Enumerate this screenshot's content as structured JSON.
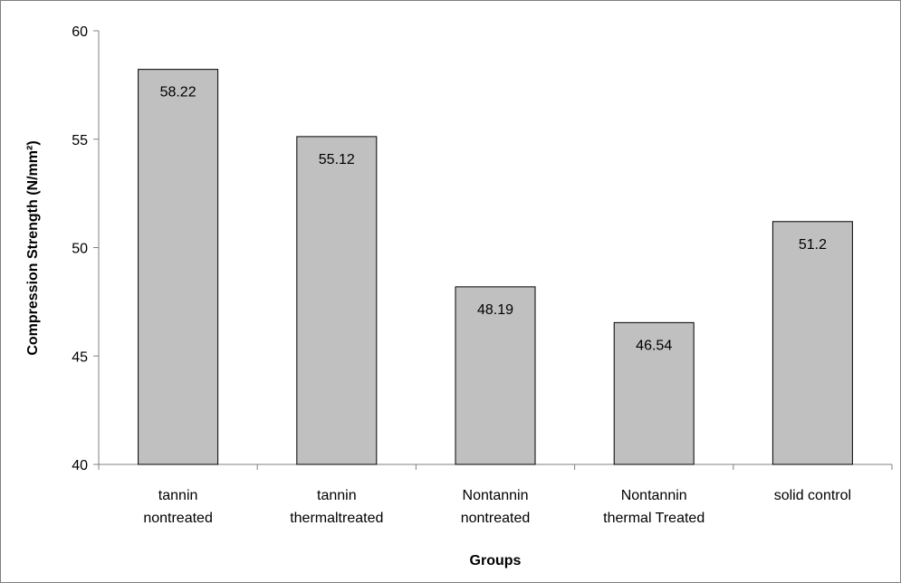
{
  "chart_data": {
    "type": "bar",
    "categories": [
      [
        "tannin",
        "nontreated"
      ],
      [
        "tannin",
        "thermaltreated"
      ],
      [
        "Nontannin",
        "nontreated"
      ],
      [
        "Nontannin",
        "thermal Treated"
      ],
      [
        "solid control"
      ]
    ],
    "values": [
      58.22,
      55.12,
      48.19,
      46.54,
      51.2
    ],
    "data_labels": [
      "58.22",
      "55.12",
      "48.19",
      "46.54",
      "51.2"
    ],
    "xlabel": "Groups",
    "ylabel": "Compression Strength (N/mm²)",
    "ylim": [
      40,
      60
    ],
    "yticks": [
      40,
      45,
      50,
      55,
      60
    ],
    "grid": false,
    "legend": "none",
    "colors": {
      "bar_fill": "#c0c0c0",
      "bar_stroke": "#000000",
      "axis": "#808080"
    }
  }
}
